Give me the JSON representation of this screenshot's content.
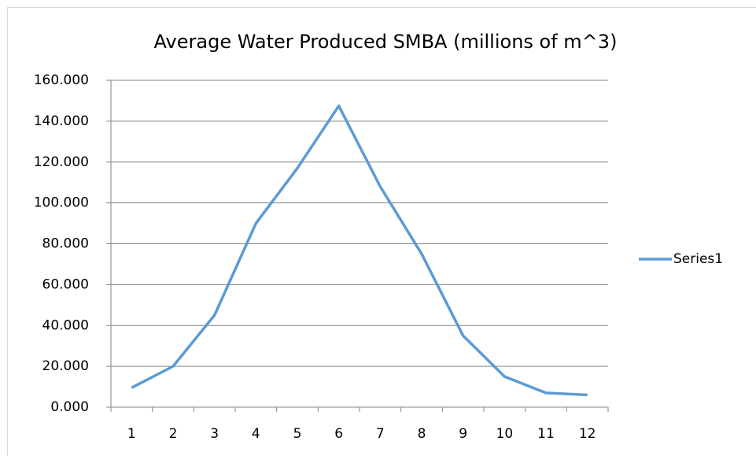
{
  "chart_data": {
    "type": "line",
    "title": "Average Water Produced SMBA (millions of m^3)",
    "categories": [
      "1",
      "2",
      "3",
      "4",
      "5",
      "6",
      "7",
      "8",
      "9",
      "10",
      "11",
      "12"
    ],
    "series": [
      {
        "name": "Series1",
        "color": "#5b9bd5",
        "values": [
          9.5,
          20,
          45,
          90,
          117,
          147.5,
          108,
          75,
          35,
          15,
          7,
          6
        ]
      }
    ],
    "ylim": [
      0,
      160
    ],
    "yticks": [
      {
        "value": 0,
        "label": "0.000"
      },
      {
        "value": 20,
        "label": "20.000"
      },
      {
        "value": 40,
        "label": "40.000"
      },
      {
        "value": 60,
        "label": "60.000"
      },
      {
        "value": 80,
        "label": "80.000"
      },
      {
        "value": 100,
        "label": "100.000"
      },
      {
        "value": 120,
        "label": "120.000"
      },
      {
        "value": 140,
        "label": "140.000"
      },
      {
        "value": 160,
        "label": "160.000"
      }
    ],
    "grid": true,
    "legend": "right"
  }
}
